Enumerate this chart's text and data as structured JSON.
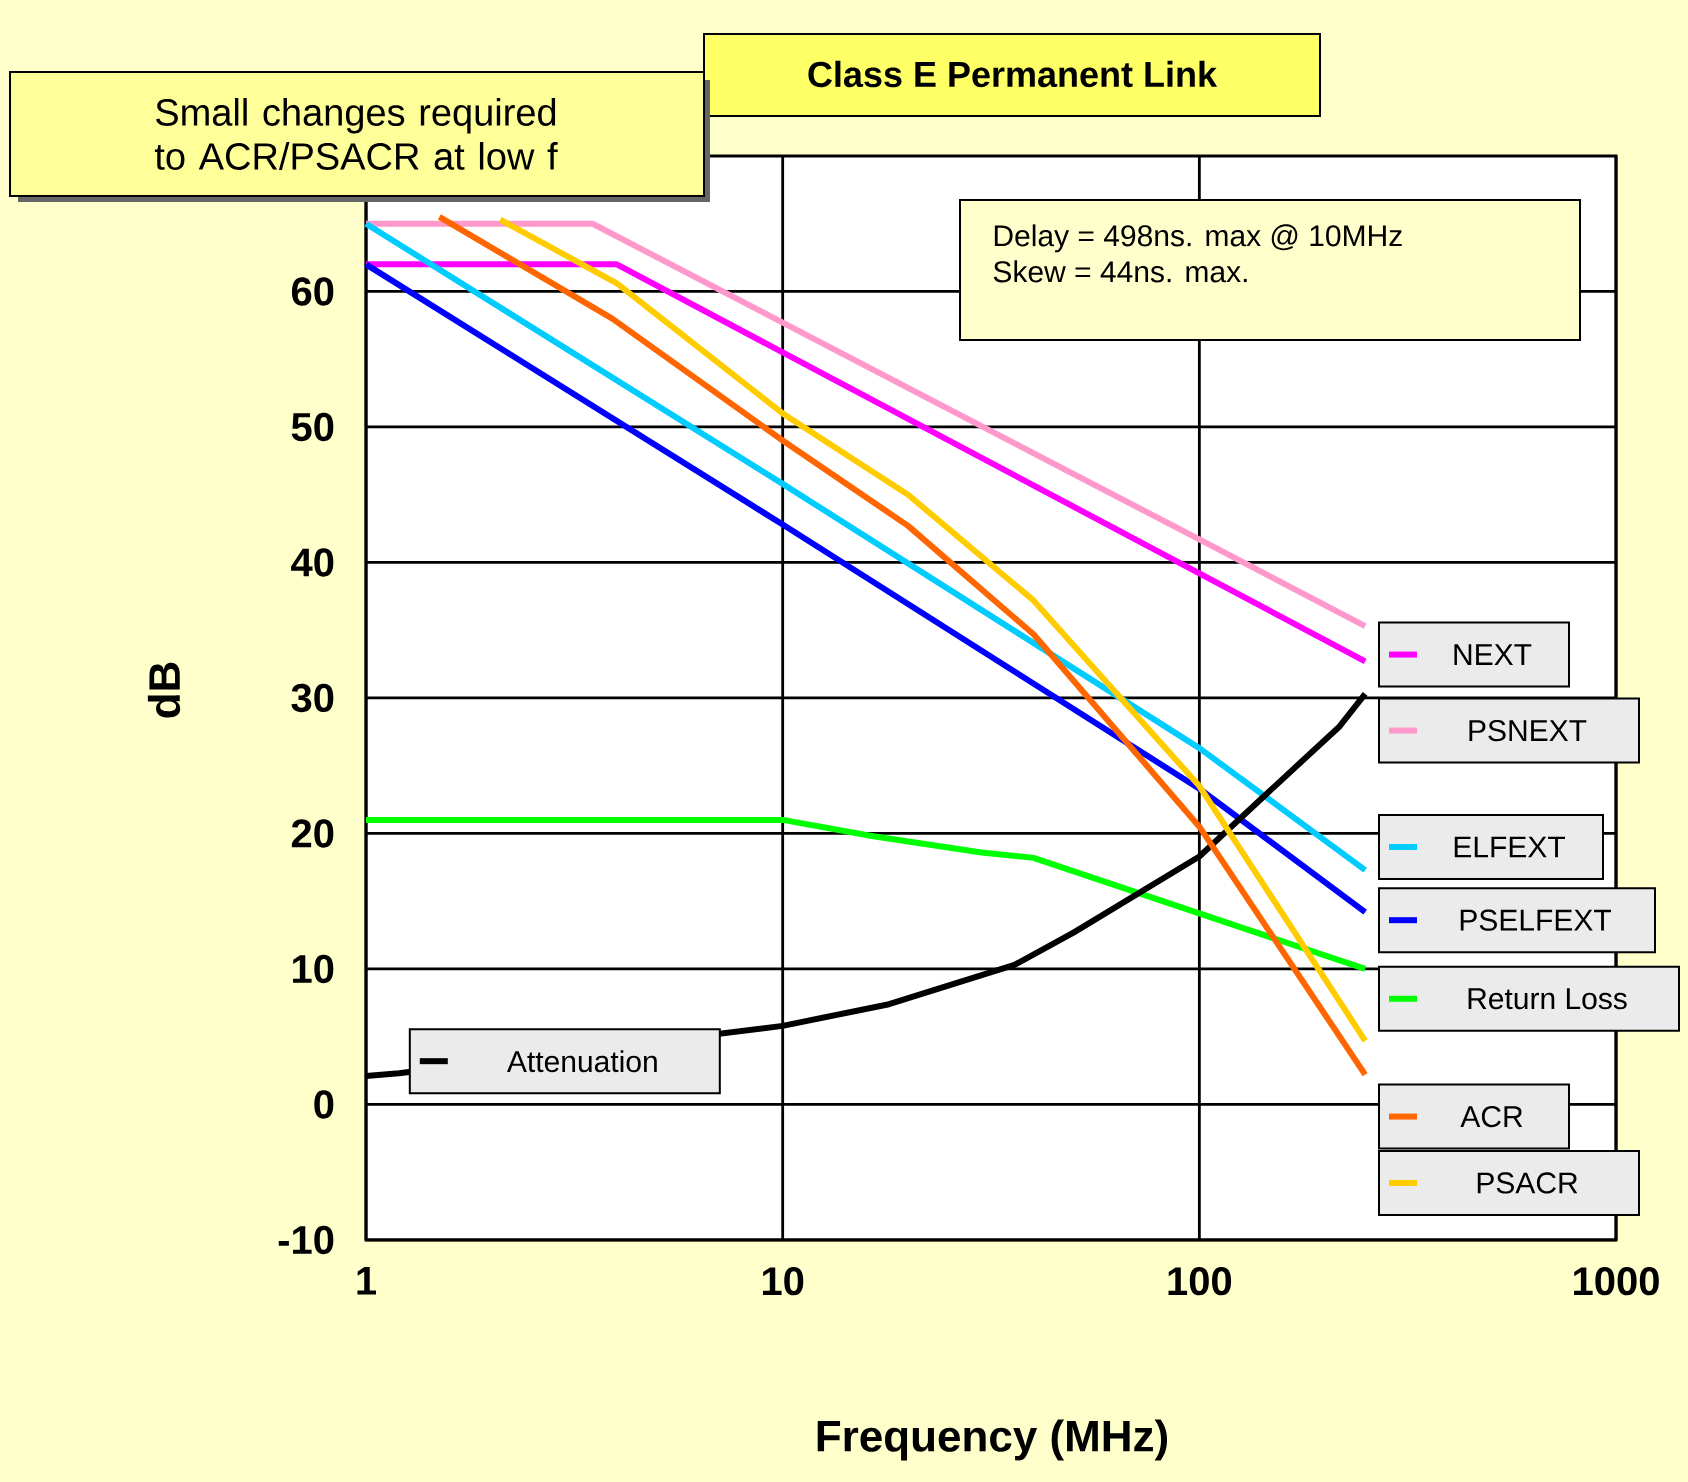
{
  "chart_data": {
    "type": "line",
    "title": "Class E Permanent Link",
    "xlabel": "Frequency (MHz)",
    "ylabel": "dB",
    "annotations": [
      "Small changes required to ACR/PSACR at low f",
      "Delay = 498ns. max @ 10MHz",
      "Skew  = 44ns. max."
    ],
    "log": "x",
    "legend": "right",
    "xlim": [
      1,
      1000
    ],
    "xticks": [
      1,
      10,
      100,
      1000
    ],
    "ylim": [
      -10,
      70
    ],
    "yticks": [
      -10,
      0,
      10,
      20,
      30,
      40,
      50,
      60
    ],
    "grid": true,
    "series": [
      {
        "name": "NEXT",
        "color": "#ff00ff",
        "x": [
          1,
          4,
          10,
          100,
          250
        ],
        "values": [
          62,
          62,
          55.5,
          39.2,
          32.7
        ]
      },
      {
        "name": "PSNEXT",
        "color": "#ff99cc",
        "x": [
          1,
          3.5,
          10,
          100,
          250
        ],
        "values": [
          65,
          65,
          57.7,
          41.7,
          35.3
        ]
      },
      {
        "name": "ELFEXT",
        "color": "#00ccff",
        "x": [
          1,
          10,
          100,
          250
        ],
        "values": [
          65,
          45.8,
          26.3,
          17.3
        ]
      },
      {
        "name": "PSELFEXT",
        "color": "#0000ff",
        "x": [
          1,
          10,
          100,
          250
        ],
        "values": [
          62,
          42.8,
          23.3,
          14.2
        ]
      },
      {
        "name": "Return Loss",
        "color": "#00ff00",
        "x": [
          1,
          10,
          16.5,
          30,
          40,
          250
        ],
        "values": [
          21,
          21,
          19.8,
          18.6,
          18.2,
          10
        ]
      },
      {
        "name": "Attenuation",
        "color": "#000000",
        "x": [
          1,
          1.2,
          10,
          18,
          36,
          50,
          100,
          139,
          217,
          250
        ],
        "values": [
          2.1,
          2.3,
          5.8,
          7.4,
          10.3,
          12.7,
          18.3,
          22.4,
          27.9,
          30.3
        ]
      },
      {
        "name": "ACR",
        "color": "#ff6600",
        "x": [
          1.5,
          3.9,
          10,
          20,
          40,
          100,
          250
        ],
        "values": [
          65.5,
          58,
          49,
          42.7,
          34.7,
          20.5,
          2.2
        ]
      },
      {
        "name": "PSACR",
        "color": "#ffcc00",
        "x": [
          2.1,
          4,
          10,
          20,
          40,
          100,
          250
        ],
        "values": [
          65.3,
          60.6,
          51,
          45,
          37.2,
          23.5,
          4.7
        ]
      }
    ]
  }
}
